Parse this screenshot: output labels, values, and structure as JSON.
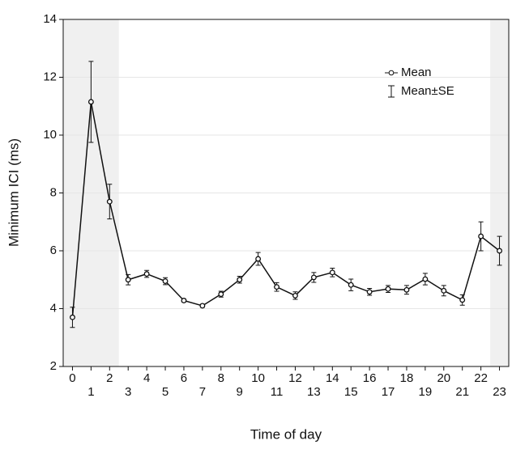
{
  "chart_data": {
    "type": "line",
    "x_label": "Time of day",
    "y_label": "Minimum ICI (ms)",
    "x": [
      0,
      1,
      2,
      3,
      4,
      5,
      6,
      7,
      8,
      9,
      10,
      11,
      12,
      13,
      14,
      15,
      16,
      17,
      18,
      19,
      20,
      21,
      22,
      23
    ],
    "series": [
      {
        "name": "Mean",
        "error_name": "Mean±SE",
        "color": "#111111",
        "values": [
          3.7,
          11.15,
          7.7,
          5.0,
          5.2,
          4.95,
          4.28,
          4.1,
          4.5,
          5.0,
          5.72,
          4.75,
          4.45,
          5.08,
          5.25,
          4.82,
          4.58,
          4.68,
          4.65,
          5.02,
          4.62,
          4.3,
          6.5,
          6.0
        ],
        "errors": [
          0.35,
          1.4,
          0.6,
          0.18,
          0.12,
          0.12,
          0.05,
          0.05,
          0.1,
          0.12,
          0.22,
          0.15,
          0.13,
          0.17,
          0.15,
          0.2,
          0.12,
          0.12,
          0.15,
          0.2,
          0.18,
          0.18,
          0.5,
          0.5
        ]
      }
    ],
    "xlim": [
      -0.5,
      23.5
    ],
    "ylim": [
      2,
      14
    ],
    "xticks": [
      0,
      1,
      2,
      3,
      4,
      5,
      6,
      7,
      8,
      9,
      10,
      11,
      12,
      13,
      14,
      15,
      16,
      17,
      18,
      19,
      20,
      21,
      22,
      23
    ],
    "yticks": [
      2,
      4,
      6,
      8,
      10,
      12,
      14
    ],
    "shaded_ranges": [
      [
        -0.5,
        2.5
      ],
      [
        22.5,
        23.5
      ]
    ],
    "shade_color": "#f0f0f0",
    "grid": true,
    "legend": "upper right"
  }
}
